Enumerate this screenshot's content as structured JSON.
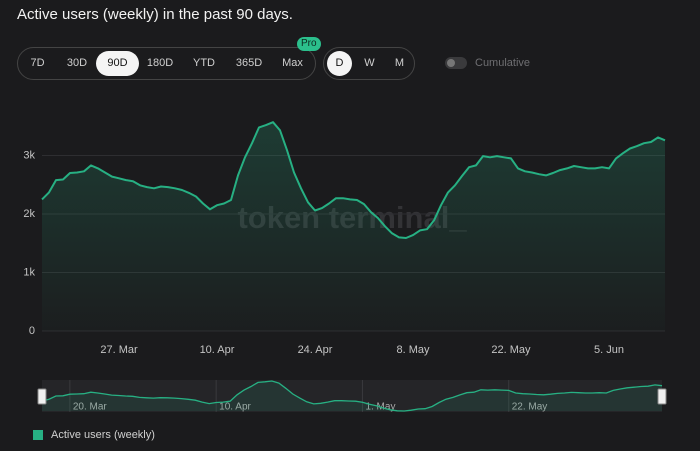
{
  "header": {
    "title": "Active users (weekly) in the past 90 days."
  },
  "controls": {
    "ranges": [
      "7D",
      "30D",
      "90D",
      "180D",
      "YTD",
      "365D",
      "Max"
    ],
    "badge": "Pro",
    "granularity": [
      "D",
      "W",
      "M"
    ],
    "toggle_label": "Cumulative"
  },
  "chart_data": {
    "type": "area",
    "watermark": "token terminal_",
    "categories": [
      null,
      null,
      null,
      null,
      null,
      null,
      null,
      null,
      null,
      null,
      null,
      "27. Mar",
      null,
      null,
      null,
      null,
      null,
      null,
      null,
      null,
      null,
      null,
      null,
      null,
      null,
      "10. Apr",
      null,
      null,
      null,
      null,
      null,
      null,
      null,
      null,
      null,
      null,
      null,
      null,
      null,
      "24. Apr",
      null,
      null,
      null,
      null,
      null,
      null,
      null,
      null,
      null,
      null,
      null,
      null,
      null,
      "8. May",
      null,
      null,
      null,
      null,
      null,
      null,
      null,
      null,
      null,
      null,
      null,
      null,
      null,
      "22. May",
      null,
      null,
      null,
      null,
      null,
      null,
      null,
      null,
      null,
      null,
      null,
      null,
      null,
      "5. Jun",
      null,
      null,
      null,
      null,
      null,
      null,
      null,
      null
    ],
    "series": [
      {
        "name": "Active users (weekly)",
        "color": "#27b083",
        "values": [
          2250,
          2370,
          2580,
          2590,
          2700,
          2710,
          2730,
          2830,
          2780,
          2710,
          2640,
          2610,
          2580,
          2560,
          2490,
          2460,
          2440,
          2470,
          2460,
          2440,
          2410,
          2360,
          2300,
          2180,
          2080,
          2150,
          2180,
          2240,
          2660,
          2970,
          3210,
          3480,
          3520,
          3570,
          3430,
          3090,
          2710,
          2440,
          2200,
          2060,
          2100,
          2180,
          2270,
          2270,
          2250,
          2240,
          2170,
          2030,
          1930,
          1790,
          1670,
          1600,
          1590,
          1640,
          1720,
          1740,
          1890,
          2150,
          2370,
          2490,
          2650,
          2800,
          2830,
          2990,
          2970,
          2990,
          2970,
          2950,
          2780,
          2730,
          2710,
          2680,
          2660,
          2700,
          2750,
          2780,
          2820,
          2800,
          2780,
          2780,
          2800,
          2780,
          2950,
          3040,
          3120,
          3160,
          3210,
          3230,
          3310,
          3260
        ]
      }
    ],
    "ylim": [
      0,
      4000
    ],
    "yticks": [
      0,
      {
        "value": 1000,
        "label": "1k"
      },
      {
        "value": 2000,
        "label": "2k"
      },
      {
        "value": 3000,
        "label": "3k"
      }
    ],
    "grid": true,
    "navigator": {
      "categories": [
        null,
        null,
        null,
        null,
        "20. Mar",
        null,
        null,
        null,
        null,
        null,
        null,
        null,
        null,
        null,
        null,
        null,
        null,
        null,
        null,
        null,
        null,
        null,
        null,
        null,
        null,
        "10. Apr",
        null,
        null,
        null,
        null,
        null,
        null,
        null,
        null,
        null,
        null,
        null,
        null,
        null,
        null,
        null,
        null,
        null,
        null,
        null,
        null,
        "1. May",
        null,
        null,
        null,
        null,
        null,
        null,
        null,
        null,
        null,
        null,
        null,
        null,
        null,
        null,
        null,
        null,
        null,
        null,
        null,
        null,
        "22. May",
        null,
        null,
        null,
        null,
        null,
        null,
        null,
        null,
        null,
        null,
        null,
        null,
        null,
        null,
        null,
        null,
        null,
        null,
        null,
        null,
        null,
        null
      ]
    }
  }
}
